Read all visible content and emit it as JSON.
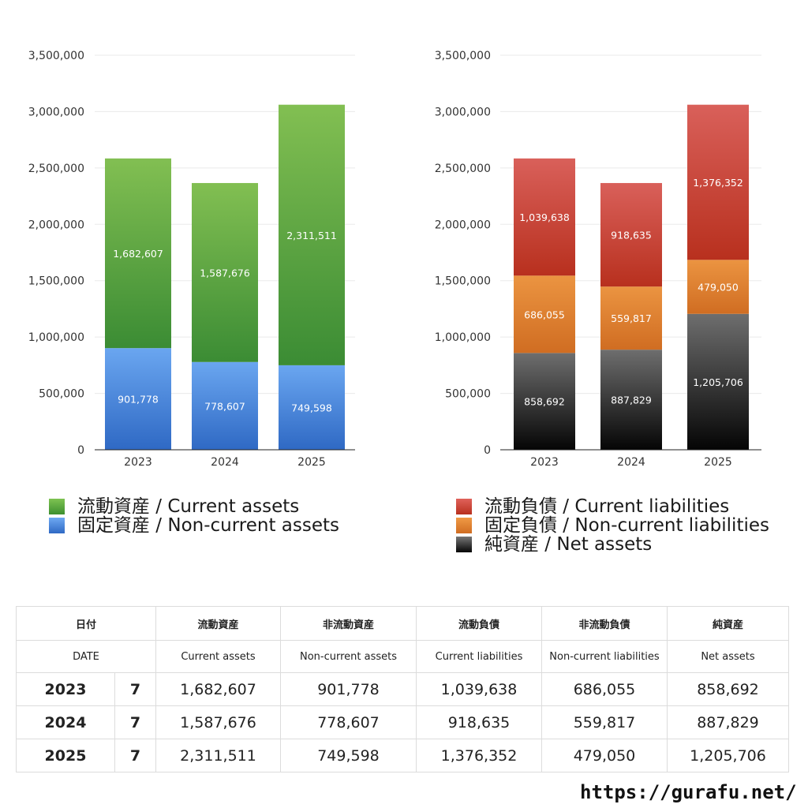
{
  "chart_data": [
    {
      "type": "bar",
      "stacked": true,
      "categories": [
        "2023",
        "2024",
        "2025"
      ],
      "series": [
        {
          "name": "固定資産 / Non-current assets",
          "values": [
            901778,
            778607,
            749598
          ],
          "color_top": "#6aa6f0",
          "color_bottom": "#2f69c4"
        },
        {
          "name": "流動資産 / Current assets",
          "values": [
            1682607,
            1587676,
            2311511
          ],
          "color_top": "#82bf52",
          "color_bottom": "#3b8c34"
        }
      ],
      "yticks": [
        "0",
        "500,000",
        "1,000,000",
        "1,500,000",
        "2,000,000",
        "2,500,000",
        "3,000,000",
        "3,500,000"
      ],
      "ylim": [
        0,
        3500000
      ],
      "grid": true,
      "legend_position": "bottom"
    },
    {
      "type": "bar",
      "stacked": true,
      "categories": [
        "2023",
        "2024",
        "2025"
      ],
      "series": [
        {
          "name": "純資産 / Net assets",
          "values": [
            858692,
            887829,
            1205706
          ],
          "color_top": "#6e6e6e",
          "color_bottom": "#050505"
        },
        {
          "name": "固定負債 / Non-current liabilities",
          "values": [
            686055,
            559817,
            479050
          ],
          "color_top": "#eb9441",
          "color_bottom": "#d06d22"
        },
        {
          "name": "流動負債 / Current liabilities",
          "values": [
            1039638,
            918635,
            1376352
          ],
          "color_top": "#d9605a",
          "color_bottom": "#b8301e"
        }
      ],
      "yticks": [
        "0",
        "500,000",
        "1,000,000",
        "1,500,000",
        "2,000,000",
        "2,500,000",
        "3,000,000",
        "3,500,000"
      ],
      "ylim": [
        0,
        3500000
      ],
      "grid": true,
      "legend_position": "bottom"
    }
  ],
  "legends": {
    "left": [
      {
        "label": "流動資産 / Current assets",
        "color": "#5aa83e"
      },
      {
        "label": "固定資産 / Non-current assets",
        "color": "#4a8be0"
      }
    ],
    "right": [
      {
        "label": "流動負債 / Current liabilities",
        "color": "#d5463a"
      },
      {
        "label": "固定負債 / Non-current liabilities",
        "color": "#e8883a"
      },
      {
        "label": "純資産 / Net assets",
        "color": "#333333"
      }
    ]
  },
  "table": {
    "header_jp": [
      "日付",
      "流動資産",
      "非流動資産",
      "流動負債",
      "非流動負債",
      "純資産"
    ],
    "header_en": [
      "DATE",
      "Current assets",
      "Non-current assets",
      "Current liabilities",
      "Non-current liabilities",
      "Net assets"
    ],
    "rows": [
      {
        "year": "2023",
        "month": "7",
        "values": [
          "1,682,607",
          "901,778",
          "1,039,638",
          "686,055",
          "858,692"
        ]
      },
      {
        "year": "2024",
        "month": "7",
        "values": [
          "1,587,676",
          "778,607",
          "918,635",
          "559,817",
          "887,829"
        ]
      },
      {
        "year": "2025",
        "month": "7",
        "values": [
          "2,311,511",
          "749,598",
          "1,376,352",
          "479,050",
          "1,205,706"
        ]
      }
    ]
  },
  "site_url": "https://gurafu.net/"
}
